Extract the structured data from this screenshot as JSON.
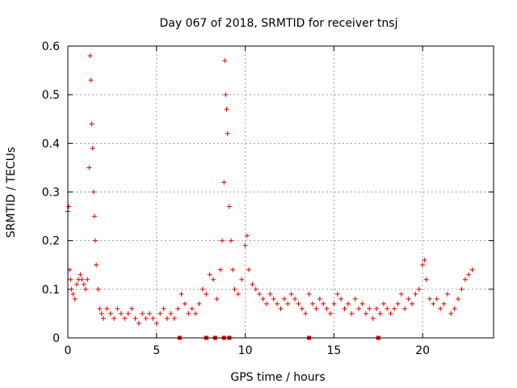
{
  "chart_data": {
    "type": "scatter",
    "title": "Day 067 of 2018, SRMTID for receiver tnsj",
    "xlabel": "GPS time / hours",
    "ylabel": "SRMTID / TECUs",
    "xlim": [
      0,
      24
    ],
    "ylim": [
      0,
      0.6
    ],
    "xticks": [
      0,
      5,
      10,
      15,
      20
    ],
    "xtick_labels": [
      "0",
      "5",
      "10",
      "15",
      "20"
    ],
    "yticks": [
      0,
      0.1,
      0.2,
      0.3,
      0.4,
      0.5,
      0.6
    ],
    "ytick_labels": [
      "0",
      "0.1",
      "0.2",
      "0.3",
      "0.4",
      "0.5",
      "0.6"
    ],
    "grid": true,
    "marker": "plus",
    "color": "#e00000",
    "series": [
      {
        "name": "SRMTID",
        "x": [
          0.0,
          0.05,
          0.1,
          0.15,
          0.2,
          0.3,
          0.4,
          0.5,
          0.6,
          0.7,
          0.8,
          0.9,
          1.0,
          1.1,
          1.2,
          1.25,
          1.3,
          1.35,
          1.4,
          1.45,
          1.5,
          1.55,
          1.6,
          1.7,
          1.8,
          1.9,
          2.0,
          2.2,
          2.4,
          2.6,
          2.8,
          3.0,
          3.2,
          3.4,
          3.6,
          3.8,
          4.0,
          4.2,
          4.4,
          4.6,
          4.8,
          5.0,
          5.2,
          5.4,
          5.6,
          5.8,
          6.0,
          6.2,
          6.4,
          6.6,
          6.8,
          7.0,
          7.2,
          7.4,
          7.6,
          7.8,
          8.0,
          8.2,
          8.4,
          8.6,
          8.7,
          8.8,
          8.85,
          8.9,
          8.95,
          9.0,
          9.1,
          9.2,
          9.3,
          9.4,
          9.6,
          9.8,
          10.0,
          10.1,
          10.2,
          10.4,
          10.6,
          10.8,
          11.0,
          11.2,
          11.4,
          11.6,
          11.8,
          12.0,
          12.2,
          12.4,
          12.6,
          12.8,
          13.0,
          13.2,
          13.4,
          13.6,
          13.8,
          14.0,
          14.2,
          14.4,
          14.6,
          14.8,
          15.0,
          15.2,
          15.4,
          15.6,
          15.8,
          16.0,
          16.2,
          16.4,
          16.6,
          16.8,
          17.0,
          17.2,
          17.4,
          17.6,
          17.8,
          18.0,
          18.2,
          18.4,
          18.6,
          18.8,
          19.0,
          19.2,
          19.4,
          19.6,
          19.8,
          20.0,
          20.1,
          20.2,
          20.4,
          20.6,
          20.8,
          21.0,
          21.2,
          21.4,
          21.6,
          21.8,
          22.0,
          22.2,
          22.4,
          22.6,
          22.8
        ],
        "y": [
          0.26,
          0.27,
          0.14,
          0.12,
          0.1,
          0.09,
          0.08,
          0.11,
          0.12,
          0.13,
          0.12,
          0.11,
          0.1,
          0.12,
          0.35,
          0.58,
          0.53,
          0.44,
          0.39,
          0.3,
          0.25,
          0.2,
          0.15,
          0.1,
          0.06,
          0.05,
          0.04,
          0.06,
          0.05,
          0.04,
          0.06,
          0.05,
          0.04,
          0.05,
          0.06,
          0.04,
          0.03,
          0.05,
          0.04,
          0.05,
          0.04,
          0.03,
          0.05,
          0.06,
          0.04,
          0.05,
          0.04,
          0.06,
          0.09,
          0.07,
          0.05,
          0.06,
          0.05,
          0.07,
          0.1,
          0.09,
          0.13,
          0.12,
          0.08,
          0.14,
          0.2,
          0.32,
          0.57,
          0.5,
          0.47,
          0.42,
          0.27,
          0.2,
          0.14,
          0.1,
          0.09,
          0.12,
          0.19,
          0.21,
          0.14,
          0.11,
          0.1,
          0.09,
          0.08,
          0.07,
          0.09,
          0.08,
          0.07,
          0.06,
          0.08,
          0.07,
          0.09,
          0.08,
          0.07,
          0.06,
          0.05,
          0.09,
          0.07,
          0.06,
          0.08,
          0.07,
          0.06,
          0.05,
          0.07,
          0.09,
          0.08,
          0.06,
          0.07,
          0.05,
          0.08,
          0.06,
          0.07,
          0.05,
          0.06,
          0.04,
          0.06,
          0.05,
          0.07,
          0.06,
          0.05,
          0.06,
          0.07,
          0.09,
          0.06,
          0.08,
          0.07,
          0.09,
          0.1,
          0.15,
          0.16,
          0.12,
          0.08,
          0.07,
          0.08,
          0.06,
          0.07,
          0.09,
          0.05,
          0.06,
          0.08,
          0.1,
          0.12,
          0.13,
          0.14
        ]
      }
    ],
    "baseline_markers_x": [
      6.3,
      7.8,
      8.3,
      8.8,
      9.1,
      13.6,
      17.5
    ]
  }
}
